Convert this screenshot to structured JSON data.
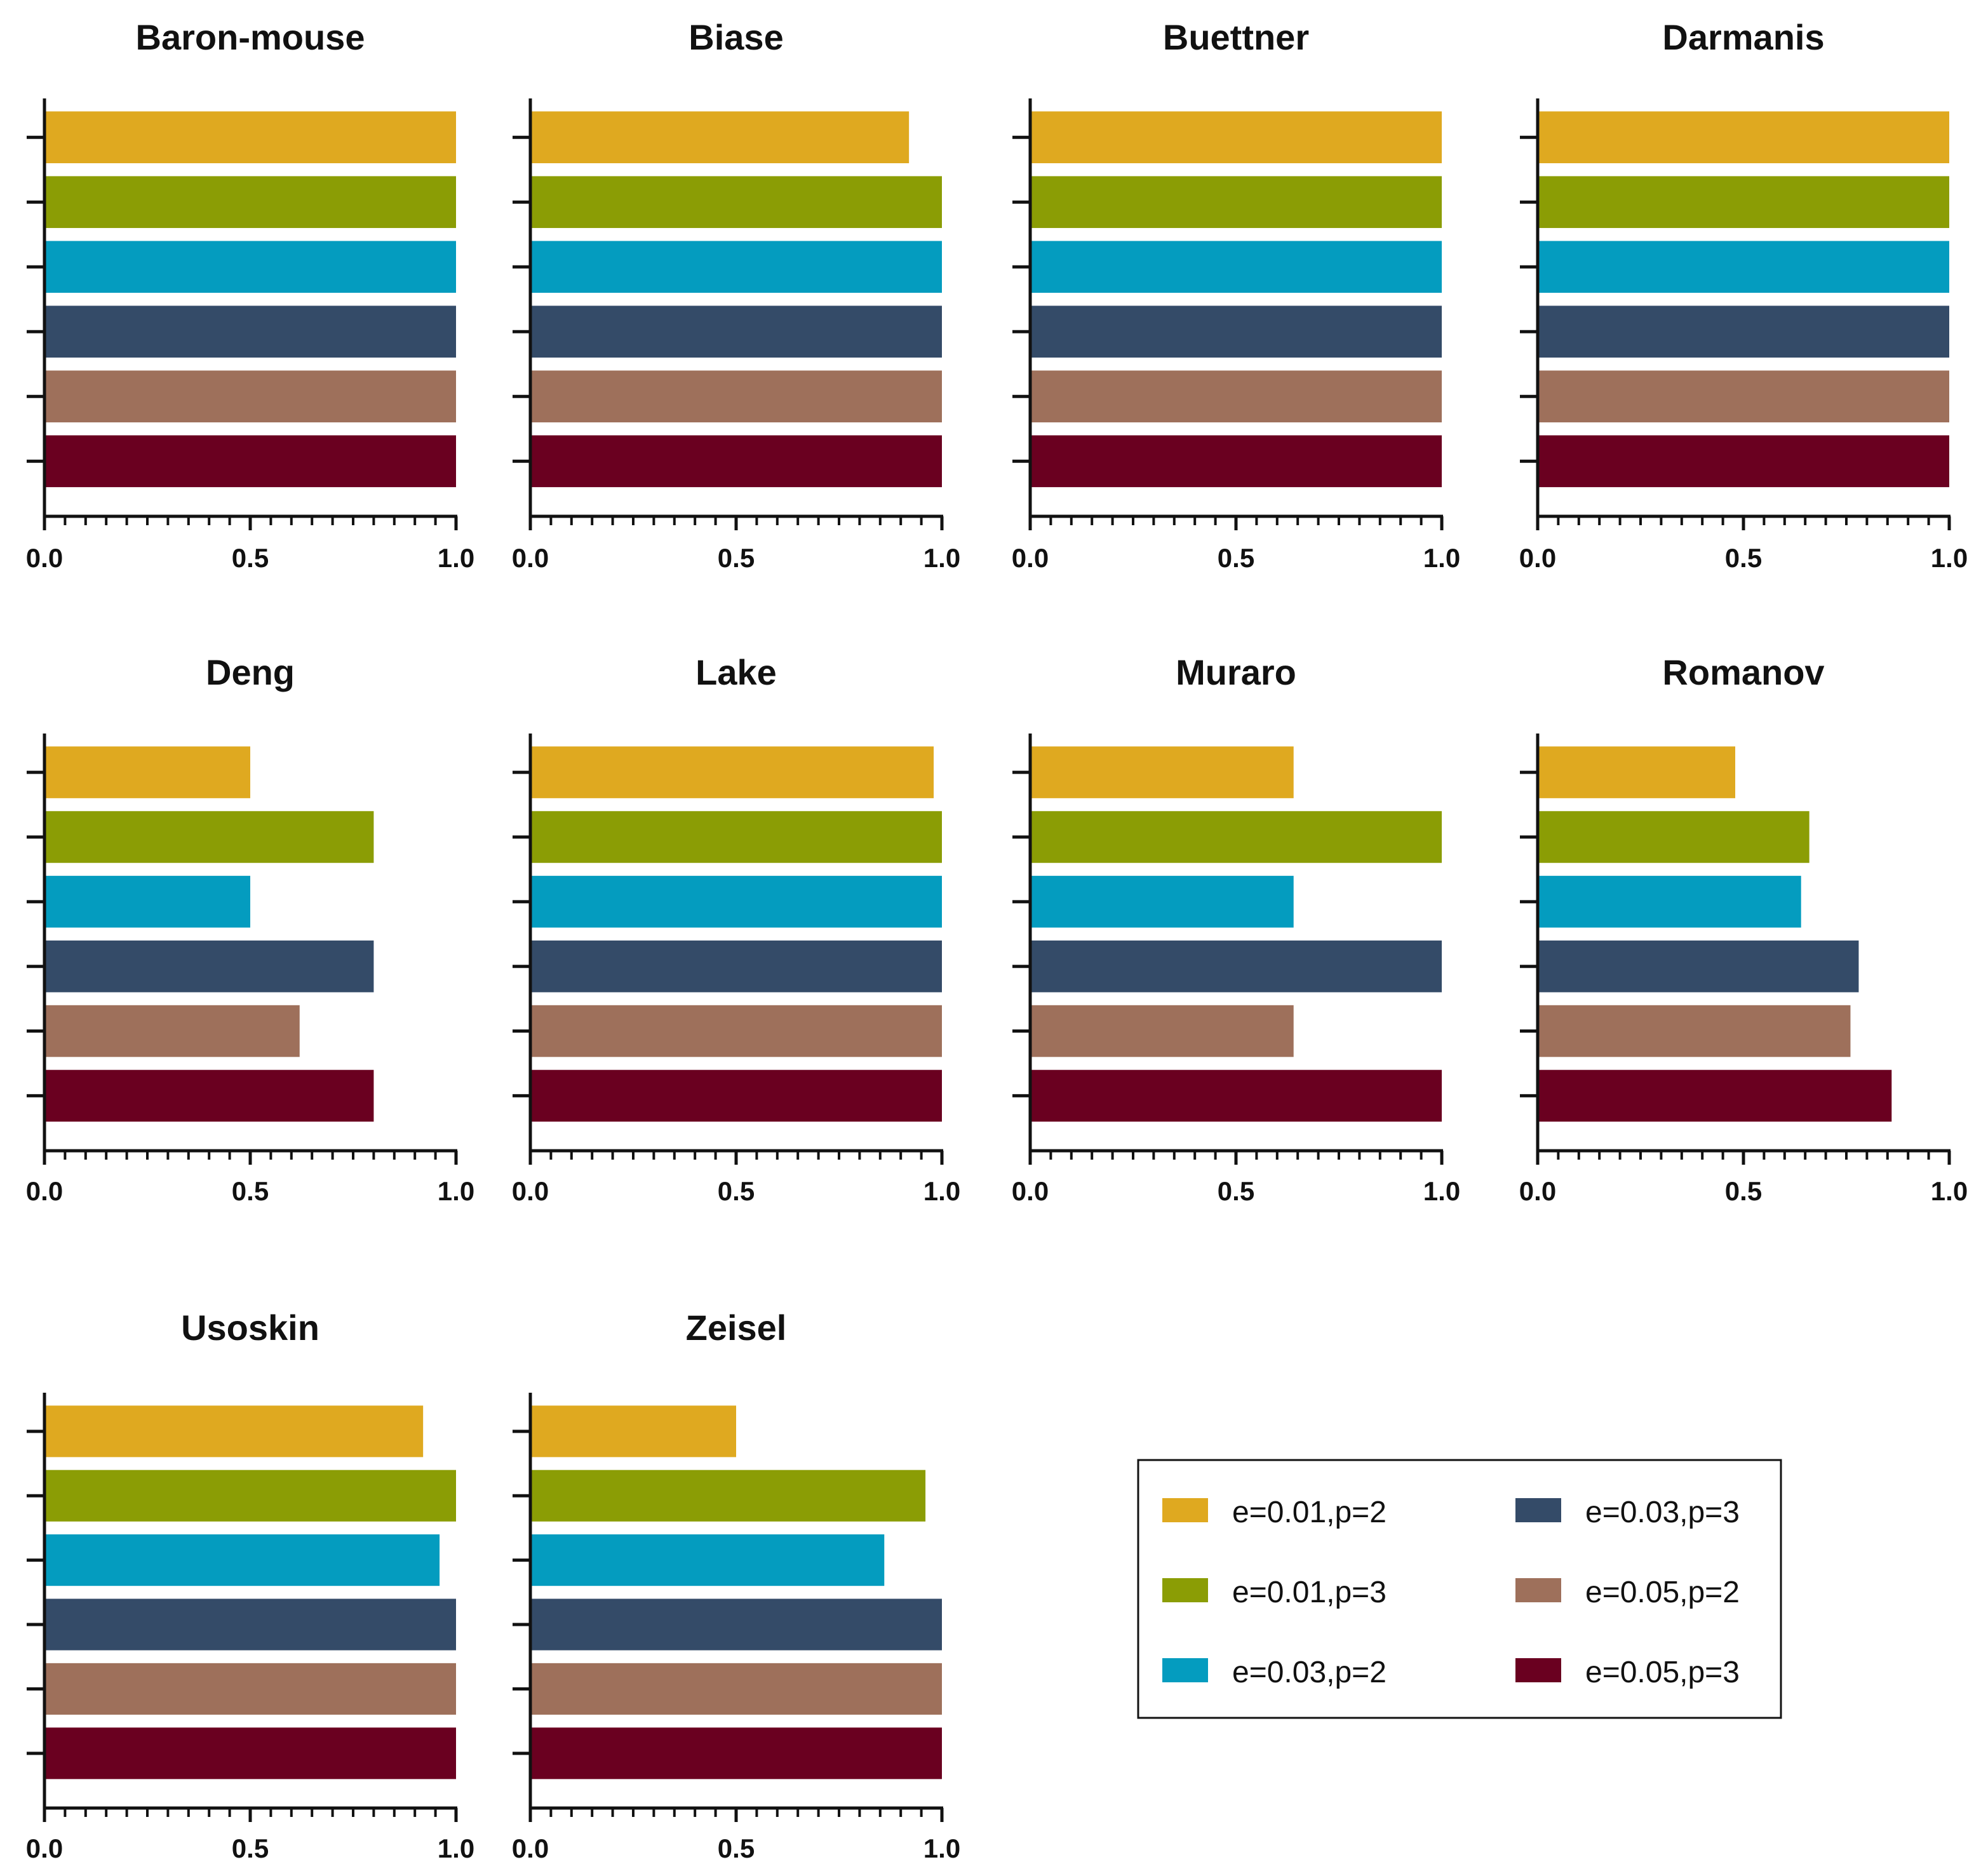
{
  "chart_data": {
    "type": "bar",
    "orientation": "horizontal",
    "xlim": [
      0.0,
      1.0
    ],
    "x_ticks": [
      "0.0",
      "0.5",
      "1.0"
    ],
    "grid": false,
    "legend_position": "bottom-right",
    "series": [
      {
        "name": "e=0.01,p=2",
        "color": "#DFA920"
      },
      {
        "name": "e=0.01,p=3",
        "color": "#8B9D05"
      },
      {
        "name": "e=0.03,p=2",
        "color": "#049CBF"
      },
      {
        "name": "e=0.03,p=3",
        "color": "#344B68"
      },
      {
        "name": "e=0.05,p=2",
        "color": "#9E705B"
      },
      {
        "name": "e=0.05,p=3",
        "color": "#6A0020"
      }
    ],
    "panels": [
      {
        "title": "Baron-mouse",
        "values": [
          1.0,
          1.0,
          1.0,
          1.0,
          1.0,
          1.0
        ]
      },
      {
        "title": "Biase",
        "values": [
          0.92,
          1.0,
          1.0,
          1.0,
          1.0,
          1.0
        ]
      },
      {
        "title": "Buettner",
        "values": [
          1.0,
          1.0,
          1.0,
          1.0,
          1.0,
          1.0
        ]
      },
      {
        "title": "Darmanis",
        "values": [
          1.0,
          1.0,
          1.0,
          1.0,
          1.0,
          1.0
        ]
      },
      {
        "title": "Deng",
        "values": [
          0.5,
          0.8,
          0.5,
          0.8,
          0.62,
          0.8
        ]
      },
      {
        "title": "Lake",
        "values": [
          0.98,
          1.0,
          1.0,
          1.0,
          1.0,
          1.0
        ]
      },
      {
        "title": "Muraro",
        "values": [
          0.64,
          1.0,
          0.64,
          1.0,
          0.64,
          1.0
        ]
      },
      {
        "title": "Romanov",
        "values": [
          0.48,
          0.66,
          0.64,
          0.78,
          0.76,
          0.86
        ]
      },
      {
        "title": "Usoskin",
        "values": [
          0.92,
          1.0,
          0.96,
          1.0,
          1.0,
          1.0
        ]
      },
      {
        "title": "Zeisel",
        "values": [
          0.5,
          0.96,
          0.86,
          1.0,
          1.0,
          1.0
        ]
      }
    ]
  }
}
